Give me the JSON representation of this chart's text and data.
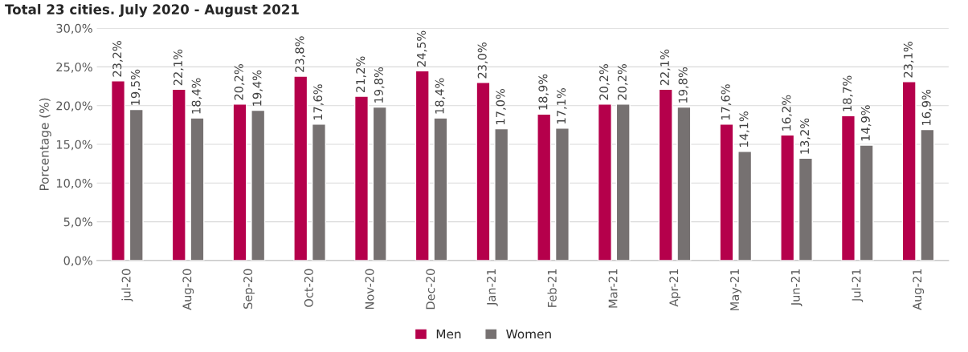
{
  "chart_data": {
    "type": "bar",
    "title": "Total 23 cities. July 2020 - August 2021",
    "ylabel": "Porcentage (%)",
    "categories": [
      "jul-20",
      "Aug-20",
      "Sep-20",
      "Oct-20",
      "Nov-20",
      "Dec-20",
      "Jan-21",
      "Feb-21",
      "Mar-21",
      "Apr-21",
      "May-21",
      "Jun-21",
      "Jul-21",
      "Aug-21"
    ],
    "series": [
      {
        "name": "Men",
        "color": "#b5004b",
        "values": [
          23.2,
          22.1,
          20.2,
          23.8,
          21.2,
          24.5,
          23.0,
          18.9,
          20.2,
          22.1,
          17.6,
          16.2,
          18.7,
          23.1
        ],
        "value_labels": [
          "23,2%",
          "22,1%",
          "20,2%",
          "23,8%",
          "21,2%",
          "24,5%",
          "23,0%",
          "18,9%",
          "20,2%",
          "22,1%",
          "17,6%",
          "16,2%",
          "18,7%",
          "23,1%"
        ]
      },
      {
        "name": "Women",
        "color": "#767171",
        "values": [
          19.5,
          18.4,
          19.4,
          17.6,
          19.8,
          18.4,
          17.0,
          17.1,
          20.2,
          19.8,
          14.1,
          13.2,
          14.9,
          16.9
        ],
        "value_labels": [
          "19,5%",
          "18,4%",
          "19,4%",
          "17,6%",
          "19,8%",
          "18,4%",
          "17,0%",
          "17,1%",
          "20,2%",
          "19,8%",
          "14,1%",
          "13,2%",
          "14,9%",
          "16,9%"
        ]
      }
    ],
    "ylim": [
      0,
      30
    ],
    "yticks": [
      {
        "value": 0,
        "label": "0,0%"
      },
      {
        "value": 5,
        "label": "5,0%"
      },
      {
        "value": 10,
        "label": "10,0%"
      },
      {
        "value": 15,
        "label": "15,0%"
      },
      {
        "value": 20,
        "label": "20,0%"
      },
      {
        "value": 25,
        "label": "25,0%"
      },
      {
        "value": 30,
        "label": "30,0%"
      }
    ],
    "grid": "y",
    "legend": "bottom"
  }
}
